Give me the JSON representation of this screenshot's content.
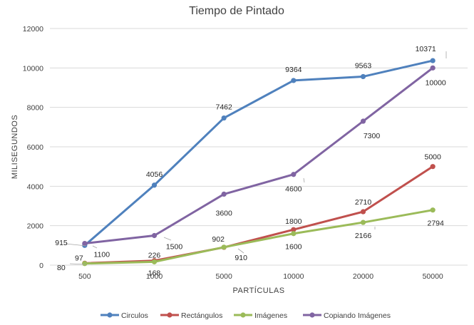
{
  "chart_data": {
    "type": "line",
    "title": "Tiempo de Pintado",
    "xlabel": "PARTÍCULAS",
    "ylabel": "MILISEGUNDOS",
    "categories": [
      "500",
      "1000",
      "5000",
      "10000",
      "20000",
      "50000"
    ],
    "ylim": [
      0,
      12000
    ],
    "yticks": [
      0,
      2000,
      4000,
      6000,
      8000,
      10000,
      12000
    ],
    "grid": true,
    "legend_position": "bottom",
    "series": [
      {
        "name": "Circulos",
        "color": "#4f81bd",
        "values": [
          1000,
          4056,
          7462,
          9364,
          9563,
          10371
        ],
        "labels": [
          "",
          "4056",
          "7462",
          "9364",
          "9563",
          "10371"
        ]
      },
      {
        "name": "Rectángulos",
        "color": "#c0504d",
        "values": [
          97,
          226,
          902,
          1800,
          2710,
          5000
        ],
        "labels": [
          "97",
          "226",
          "902",
          "1800",
          "2710",
          "5000"
        ]
      },
      {
        "name": "Imágenes",
        "color": "#9bbb59",
        "values": [
          80,
          168,
          910,
          1600,
          2166,
          2794
        ],
        "labels": [
          "80",
          "168",
          "910",
          "1600",
          "2166",
          "2794"
        ]
      },
      {
        "name": "Copiando Imágenes",
        "color": "#8064a2",
        "values": [
          1100,
          1500,
          3600,
          4600,
          7300,
          10000
        ],
        "labels": [
          "1100",
          "1500",
          "3600",
          "4600",
          "7300",
          "10000"
        ]
      }
    ],
    "extra_labels": [
      {
        "text": "915"
      }
    ]
  }
}
